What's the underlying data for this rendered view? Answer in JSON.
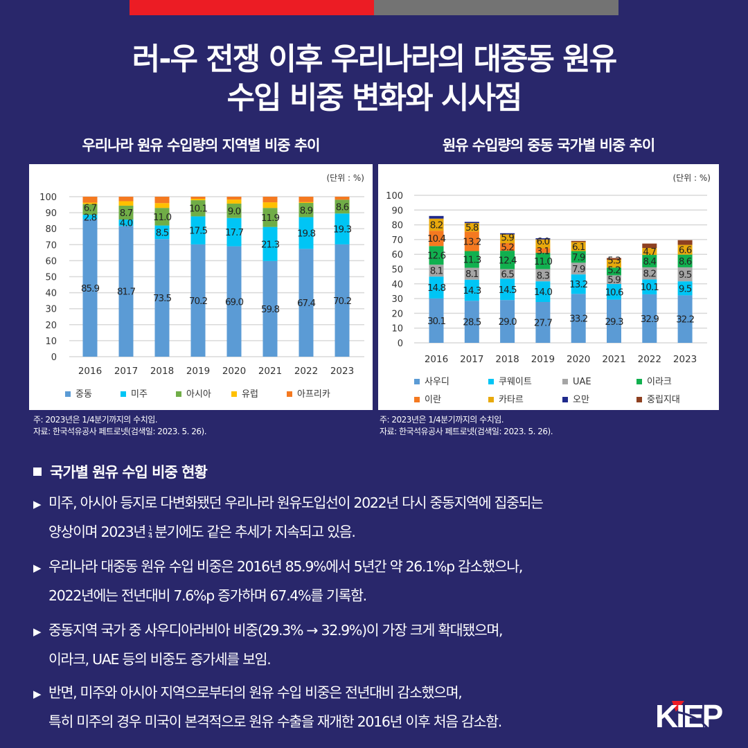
{
  "title": {
    "line1": "러-우 전쟁 이후 우리나라의 대중동 원유",
    "line2": "수입 비중 변화와 시사점"
  },
  "colors": {
    "background": "#29276b",
    "bar_red": "#ec1c24",
    "bar_gray": "#737373"
  },
  "chart_data": [
    {
      "type": "bar",
      "stacked": true,
      "title": "우리나라 원유 수입량의 지역별 비중 추이",
      "unit": "(단위 : %)",
      "categories": [
        "2016",
        "2017",
        "2018",
        "2019",
        "2020",
        "2021",
        "2022",
        "2023"
      ],
      "ylim": [
        0,
        100
      ],
      "yticks": [
        "0",
        "10",
        "20",
        "30",
        "40",
        "50",
        "60",
        "70",
        "80",
        "90",
        "100"
      ],
      "grid": true,
      "legend": "bottom",
      "series": [
        {
          "name": "중동",
          "color": "#5b9bd5",
          "values": [
            85.9,
            81.7,
            73.5,
            70.2,
            69.0,
            59.8,
            67.4,
            70.2
          ],
          "labels": true
        },
        {
          "name": "미주",
          "color": "#00c5f5",
          "values": [
            2.8,
            4.0,
            8.5,
            17.5,
            17.7,
            21.3,
            19.8,
            19.3
          ],
          "labels": true
        },
        {
          "name": "아시아",
          "color": "#70ad47",
          "values": [
            6.7,
            8.7,
            11.0,
            10.1,
            9.0,
            11.9,
            8.9,
            8.6
          ],
          "labels": true
        },
        {
          "name": "유럽",
          "color": "#ffc000",
          "values": [
            0.9,
            2.8,
            3.0,
            0.9,
            2.5,
            3.5,
            0.5,
            0
          ],
          "labels": false
        },
        {
          "name": "아프리카",
          "color": "#f47920",
          "values": [
            3.7,
            2.8,
            4.0,
            1.3,
            1.8,
            3.5,
            3.4,
            1.9
          ],
          "labels": false
        }
      ],
      "notes": [
        "주: 2023년은 1/4분기까지의 수치임.",
        "자료: 한국석유공사 페트로넷(검색일: 2023. 5. 26)."
      ]
    },
    {
      "type": "bar",
      "stacked": true,
      "title": "원유 수입량의 중동 국가별 비중 추이",
      "unit": "(단위 : %)",
      "categories": [
        "2016",
        "2017",
        "2018",
        "2019",
        "2020",
        "2021",
        "2022",
        "2023"
      ],
      "ylim": [
        0,
        100
      ],
      "yticks": [
        "0",
        "10",
        "20",
        "30",
        "40",
        "50",
        "60",
        "70",
        "80",
        "90",
        "100"
      ],
      "grid": true,
      "legend": "bottom",
      "series": [
        {
          "name": "사우디",
          "color": "#5b9bd5",
          "values": [
            30.1,
            28.5,
            29.0,
            27.7,
            33.2,
            29.3,
            32.9,
            32.2
          ],
          "labels": true
        },
        {
          "name": "쿠웨이트",
          "color": "#00c5f5",
          "values": [
            14.8,
            14.3,
            14.5,
            14.0,
            13.2,
            10.6,
            10.1,
            9.5
          ],
          "labels": true
        },
        {
          "name": "UAE",
          "color": "#a5a5a5",
          "values": [
            8.1,
            8.1,
            6.5,
            8.3,
            7.9,
            5.9,
            8.2,
            9.5
          ],
          "labels": true
        },
        {
          "name": "이라크",
          "color": "#11b04f",
          "values": [
            12.6,
            11.3,
            12.4,
            11.0,
            7.9,
            5.2,
            8.4,
            8.6
          ],
          "labels": true
        },
        {
          "name": "이란",
          "color": "#f47920",
          "values": [
            10.4,
            13.2,
            5.2,
            3.1,
            0,
            0,
            0,
            0
          ],
          "labels": true
        },
        {
          "name": "카타르",
          "color": "#e8a90c",
          "values": [
            8.2,
            5.8,
            5.9,
            6.0,
            6.1,
            5.3,
            4.7,
            6.6
          ],
          "labels": true
        },
        {
          "name": "오만",
          "color": "#1f2a8c",
          "values": [
            1.8,
            0.8,
            0.8,
            0.8,
            0,
            0,
            0,
            0
          ],
          "labels": false
        },
        {
          "name": "중립지대",
          "color": "#8e4020",
          "values": [
            0,
            0,
            0,
            0,
            0.8,
            1.2,
            3.0,
            3.2
          ],
          "labels": false
        }
      ],
      "notes": [
        "주: 2023년은 1/4분기까지의 수치임.",
        "자료: 한국석유공사 페트로넷(검색일: 2023. 5. 26)."
      ]
    }
  ],
  "section": {
    "heading": "국가별 원유 수입 비중 현황",
    "bullets": [
      {
        "l1": "미주, 아시아 등지로 다변화됐던 우리나라 원유도입선이 2022년 다시 중동지역에 집중되는",
        "l2a": "양상이며 2023년",
        "frac_num": "1",
        "frac_den": "4",
        "l2b": "분기에도 같은 추세가 지속되고 있음."
      },
      {
        "l1": "우리나라 대중동 원유 수입 비중은 2016년 85.9%에서 5년간 약 26.1%p 감소했으나,",
        "l2": "2022년에는 전년대비 7.6%p 증가하며 67.4%를 기록함."
      },
      {
        "l1": "중동지역 국가 중 사우디아라비아 비중(29.3% → 32.9%)이 가장 크게 확대됐으며,",
        "l2": "이라크, UAE 등의 비중도 증가세를 보임."
      },
      {
        "l1": "반면, 미주와 아시아 지역으로부터의 원유 수입 비중은 전년대비 감소했으며,",
        "l2": "특히 미주의 경우 미국이 본격적으로 원유 수출을 재개한 2016년 이후 처음 감소함."
      }
    ]
  },
  "logo": {
    "text": "KIEP"
  }
}
